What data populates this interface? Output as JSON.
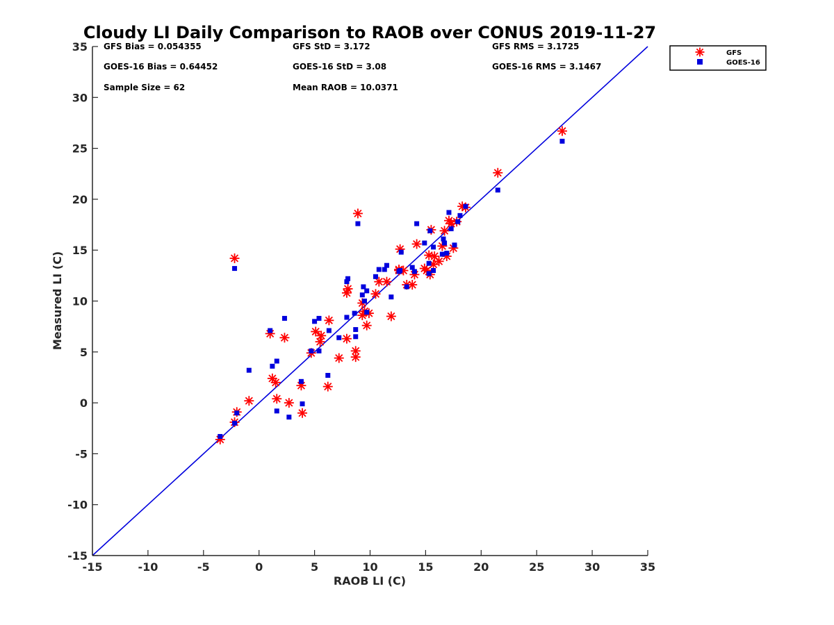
{
  "chart_data": {
    "type": "scatter",
    "title": "Cloudy LI Daily Comparison to RAOB over CONUS 2019-11-27",
    "xlabel": "RAOB LI (C)",
    "ylabel": "Measured LI (C)",
    "xlim": [
      -15,
      35
    ],
    "ylim": [
      -15,
      35
    ],
    "xticks": [
      "-15",
      "-10",
      "-5",
      "0",
      "5",
      "10",
      "15",
      "20",
      "25",
      "30",
      "35"
    ],
    "yticks": [
      "-15",
      "-10",
      "-5",
      "0",
      "5",
      "10",
      "15",
      "20",
      "25",
      "30",
      "35"
    ],
    "grid": false,
    "legend_position": "outside top-right",
    "reference_line": {
      "x": [
        -15,
        35
      ],
      "y": [
        -15,
        35
      ],
      "color": "#0000dd"
    },
    "stats": [
      [
        "GFS Bias = 0.054355",
        "GFS StD = 3.172",
        "GFS RMS = 3.1725"
      ],
      [
        "GOES-16 Bias = 0.64452",
        "GOES-16 StD = 3.08",
        "GOES-16 RMS = 3.1467"
      ],
      [
        "Sample Size = 62",
        "Mean RAOB = 10.0371",
        ""
      ]
    ],
    "series": [
      {
        "name": "GFS",
        "marker": "asterisk",
        "color": "#ff0000",
        "points": [
          [
            -3.5,
            -3.6
          ],
          [
            -2.2,
            -1.9
          ],
          [
            -2.0,
            -0.9
          ],
          [
            -0.9,
            0.2
          ],
          [
            1.0,
            6.8
          ],
          [
            1.2,
            2.4
          ],
          [
            1.5,
            2.0
          ],
          [
            1.6,
            0.4
          ],
          [
            2.3,
            6.4
          ],
          [
            2.7,
            0.0
          ],
          [
            3.8,
            1.7
          ],
          [
            3.9,
            -1.0
          ],
          [
            4.7,
            4.9
          ],
          [
            5.1,
            7.0
          ],
          [
            5.5,
            6.0
          ],
          [
            5.6,
            6.6
          ],
          [
            6.2,
            1.6
          ],
          [
            6.3,
            8.1
          ],
          [
            7.2,
            4.4
          ],
          [
            7.9,
            6.3
          ],
          [
            7.9,
            10.8
          ],
          [
            8.0,
            11.2
          ],
          [
            8.7,
            4.5
          ],
          [
            8.7,
            5.1
          ],
          [
            8.9,
            18.6
          ],
          [
            9.3,
            8.6
          ],
          [
            9.3,
            9.8
          ],
          [
            9.5,
            9.0
          ],
          [
            9.7,
            7.6
          ],
          [
            10.5,
            10.7
          ],
          [
            10.8,
            11.9
          ],
          [
            11.5,
            11.9
          ],
          [
            11.9,
            8.5
          ],
          [
            12.6,
            13.1
          ],
          [
            12.7,
            15.1
          ],
          [
            13.3,
            11.6
          ],
          [
            13.8,
            11.6
          ],
          [
            14.0,
            12.6
          ],
          [
            14.2,
            15.6
          ],
          [
            14.9,
            13.2
          ],
          [
            15.3,
            14.5
          ],
          [
            15.4,
            12.6
          ],
          [
            15.5,
            17.0
          ],
          [
            15.7,
            13.6
          ],
          [
            15.8,
            14.4
          ],
          [
            16.5,
            15.4
          ],
          [
            16.7,
            16.9
          ],
          [
            16.9,
            14.4
          ],
          [
            17.1,
            17.9
          ],
          [
            17.5,
            15.2
          ],
          [
            17.8,
            17.8
          ],
          [
            18.3,
            19.3
          ],
          [
            18.6,
            19.2
          ],
          [
            21.5,
            22.6
          ],
          [
            27.3,
            26.7
          ],
          [
            -2.2,
            14.2
          ],
          [
            9.9,
            8.8
          ],
          [
            16.2,
            13.9
          ],
          [
            13.0,
            13.0
          ],
          [
            17.3,
            17.6
          ],
          [
            12.6,
            13.0
          ],
          [
            15.1,
            13.0
          ]
        ]
      },
      {
        "name": "GOES-16",
        "marker": "square",
        "color": "#0000dd",
        "points": [
          [
            -3.5,
            -3.3
          ],
          [
            -2.2,
            -2.0
          ],
          [
            -2.0,
            -1.0
          ],
          [
            -0.9,
            3.2
          ],
          [
            1.0,
            7.1
          ],
          [
            1.2,
            3.6
          ],
          [
            1.6,
            4.1
          ],
          [
            1.6,
            -0.8
          ],
          [
            2.3,
            8.3
          ],
          [
            2.7,
            -1.4
          ],
          [
            3.8,
            2.1
          ],
          [
            3.9,
            -0.1
          ],
          [
            4.7,
            5.1
          ],
          [
            5.0,
            8.0
          ],
          [
            5.4,
            8.3
          ],
          [
            5.4,
            5.1
          ],
          [
            6.2,
            2.7
          ],
          [
            6.3,
            7.1
          ],
          [
            7.2,
            6.4
          ],
          [
            7.9,
            8.4
          ],
          [
            7.9,
            11.9
          ],
          [
            8.0,
            12.2
          ],
          [
            8.6,
            8.8
          ],
          [
            8.7,
            7.2
          ],
          [
            8.7,
            6.5
          ],
          [
            8.9,
            17.6
          ],
          [
            9.3,
            10.6
          ],
          [
            9.4,
            11.4
          ],
          [
            9.7,
            11.0
          ],
          [
            9.7,
            8.9
          ],
          [
            10.5,
            12.4
          ],
          [
            10.8,
            13.1
          ],
          [
            11.3,
            13.1
          ],
          [
            11.5,
            13.5
          ],
          [
            11.9,
            10.4
          ],
          [
            12.6,
            12.9
          ],
          [
            12.8,
            14.8
          ],
          [
            13.3,
            11.4
          ],
          [
            13.8,
            13.3
          ],
          [
            14.0,
            12.9
          ],
          [
            14.2,
            17.6
          ],
          [
            14.9,
            15.7
          ],
          [
            15.3,
            13.7
          ],
          [
            15.3,
            12.7
          ],
          [
            15.4,
            16.9
          ],
          [
            15.7,
            15.3
          ],
          [
            15.7,
            13.0
          ],
          [
            16.5,
            14.6
          ],
          [
            16.6,
            16.1
          ],
          [
            16.9,
            14.7
          ],
          [
            17.1,
            18.7
          ],
          [
            17.3,
            17.1
          ],
          [
            17.6,
            15.5
          ],
          [
            17.9,
            17.8
          ],
          [
            18.1,
            18.4
          ],
          [
            18.6,
            19.3
          ],
          [
            21.5,
            20.9
          ],
          [
            27.3,
            25.7
          ],
          [
            -2.2,
            13.2
          ],
          [
            12.7,
            13.0
          ],
          [
            9.5,
            10.0
          ],
          [
            16.7,
            15.7
          ]
        ]
      }
    ]
  }
}
